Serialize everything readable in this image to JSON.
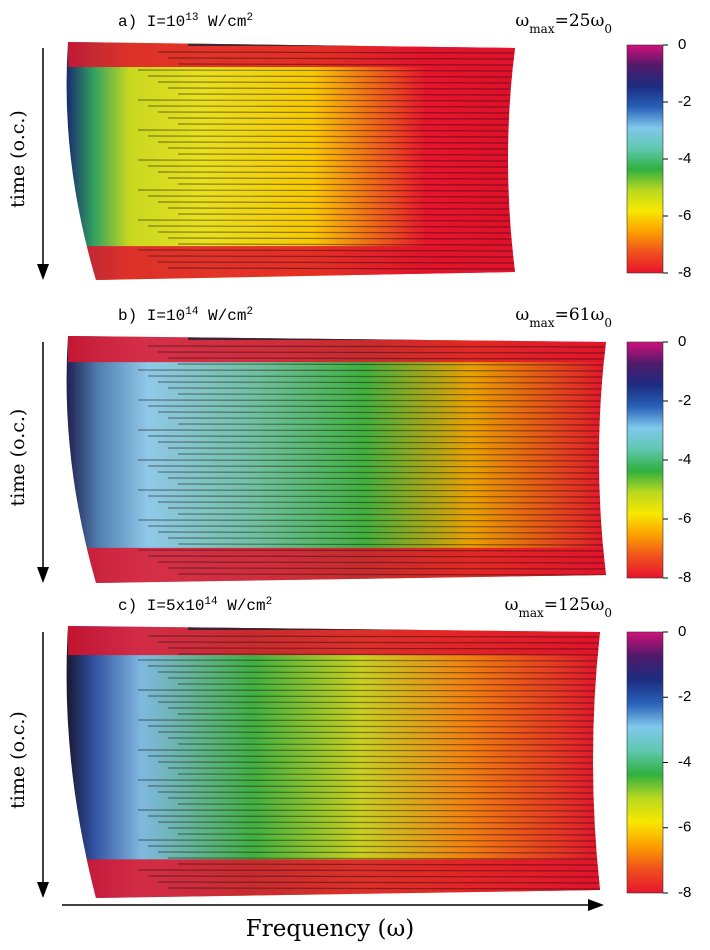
{
  "chart_data": [
    {
      "type": "heatmap",
      "title": [
        {
          "text": "a) I=10"
        },
        {
          "text": "13",
          "sup": true
        },
        {
          "text": " W/cm"
        },
        {
          "text": "2",
          "sup": true
        }
      ],
      "omega": [
        {
          "text": "ω"
        },
        {
          "text": "max",
          "sub": true
        },
        {
          "text": "=25ω"
        },
        {
          "text": "0",
          "sub": true
        }
      ],
      "ylabel": "time (o.c.)",
      "clim": [
        -8,
        0
      ],
      "cticks": [
        0,
        -2,
        -4,
        -6,
        -8
      ]
    },
    {
      "type": "heatmap",
      "title": [
        {
          "text": "b) I=10"
        },
        {
          "text": "14",
          "sup": true
        },
        {
          "text": " W/cm"
        },
        {
          "text": "2",
          "sup": true
        }
      ],
      "omega": [
        {
          "text": "ω"
        },
        {
          "text": "max",
          "sub": true
        },
        {
          "text": "=61ω"
        },
        {
          "text": "0",
          "sub": true
        }
      ],
      "ylabel": "time (o.c.)",
      "clim": [
        -8,
        0
      ],
      "cticks": [
        0,
        -2,
        -4,
        -6,
        -8
      ]
    },
    {
      "type": "heatmap",
      "title": [
        {
          "text": "c) I=5x10"
        },
        {
          "text": "14",
          "sup": true
        },
        {
          "text": " W/cm"
        },
        {
          "text": "2",
          "sup": true
        }
      ],
      "omega": [
        {
          "text": "ω"
        },
        {
          "text": "max",
          "sub": true
        },
        {
          "text": "=125ω"
        },
        {
          "text": "0",
          "sub": true
        }
      ],
      "ylabel": "time (o.c.)",
      "clim": [
        -8,
        0
      ],
      "cticks": [
        0,
        -2,
        -4,
        -6,
        -8
      ]
    }
  ],
  "xlabel": "Frequency   (ω)",
  "colormap": [
    "#e8142c",
    "#f0501e",
    "#fca000",
    "#f8e800",
    "#b8d820",
    "#30b040",
    "#60c8b0",
    "#80c8ec",
    "#2860b8",
    "#1c2c80",
    "#501a6a",
    "#d0107a"
  ]
}
